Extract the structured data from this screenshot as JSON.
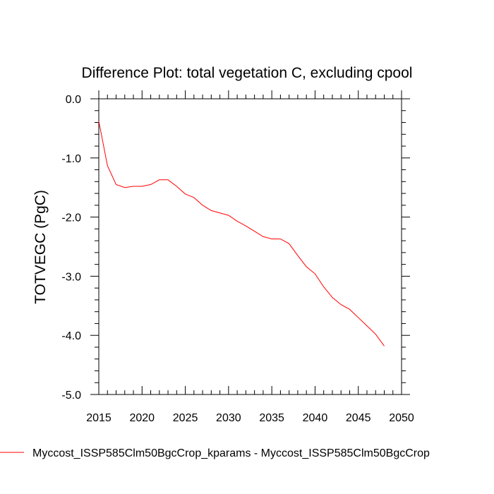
{
  "chart_data": {
    "type": "line",
    "title": "Difference Plot: total vegetation C, excluding cpool",
    "xlabel": "",
    "ylabel": "TOTVEGC  (PgC)",
    "xlim": [
      2015,
      2050
    ],
    "ylim": [
      -5.0,
      0.0
    ],
    "x_ticks": [
      2015,
      2020,
      2025,
      2030,
      2035,
      2040,
      2045,
      2050
    ],
    "x_tick_labels": [
      "2015",
      "2020",
      "2025",
      "2030",
      "2035",
      "2040",
      "2045",
      "2050"
    ],
    "y_ticks": [
      0.0,
      -1.0,
      -2.0,
      -3.0,
      -4.0,
      -5.0
    ],
    "y_tick_labels": [
      "0.0",
      "-1.0",
      "-2.0",
      "-3.0",
      "-4.0",
      "-5.0"
    ],
    "series": [
      {
        "name": "Myccost_ISSP585Clm50BgcCrop_kparams - Myccost_ISSP585Clm50BgcCrop",
        "color": "#ff0000",
        "x": [
          2015,
          2016,
          2017,
          2018,
          2019,
          2020,
          2021,
          2022,
          2023,
          2024,
          2025,
          2026,
          2027,
          2028,
          2029,
          2030,
          2031,
          2032,
          2033,
          2034,
          2035,
          2036,
          2037,
          2038,
          2039,
          2040,
          2041,
          2042,
          2043,
          2044,
          2045,
          2046,
          2047,
          2048
        ],
        "y": [
          -0.38,
          -1.13,
          -1.45,
          -1.5,
          -1.48,
          -1.48,
          -1.45,
          -1.37,
          -1.37,
          -1.48,
          -1.61,
          -1.67,
          -1.8,
          -1.89,
          -1.93,
          -1.97,
          -2.07,
          -2.15,
          -2.24,
          -2.33,
          -2.37,
          -2.37,
          -2.45,
          -2.65,
          -2.84,
          -2.96,
          -3.18,
          -3.36,
          -3.48,
          -3.56,
          -3.7,
          -3.84,
          -3.98,
          -4.18
        ]
      }
    ],
    "legend_position": "bottom-left"
  }
}
